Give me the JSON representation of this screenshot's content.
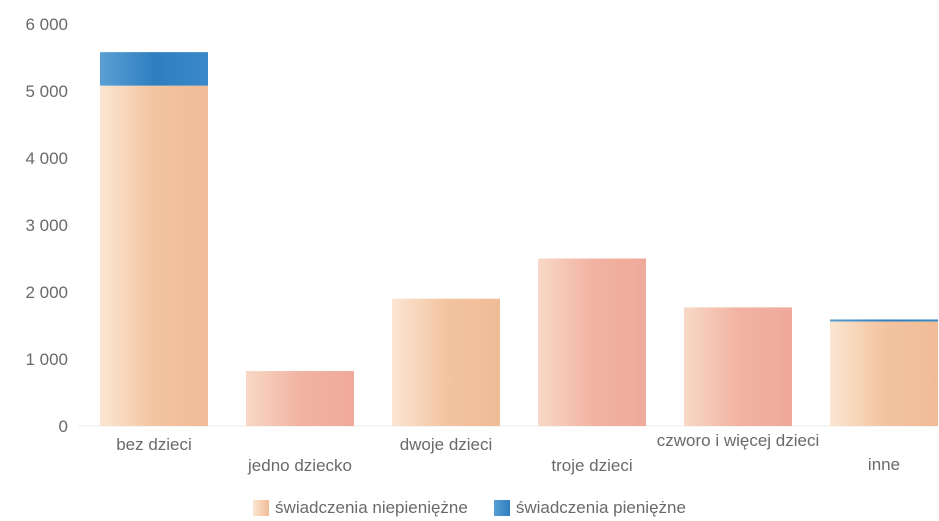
{
  "chart_data": {
    "type": "bar",
    "stacked": true,
    "categories": [
      "bez dzieci",
      "jedno dziecko",
      "dwoje dzieci",
      "troje dzieci",
      "czworo i więcej dzieci",
      "inne"
    ],
    "series": [
      {
        "name": "świadczenia niepieniężne",
        "values": [
          5080,
          820,
          1900,
          2500,
          1770,
          1560
        ],
        "color": "#f2c3a0"
      },
      {
        "name": "świadczenia pieniężne",
        "values": [
          500,
          0,
          0,
          0,
          0,
          30
        ],
        "color": "#3b86c4"
      }
    ],
    "y_ticks": [
      "0",
      "1 000",
      "2 000",
      "3 000",
      "4 000",
      "5 000",
      "6 000"
    ],
    "ylim": [
      0,
      6000
    ],
    "grid": false,
    "legend_position": "bottom"
  }
}
